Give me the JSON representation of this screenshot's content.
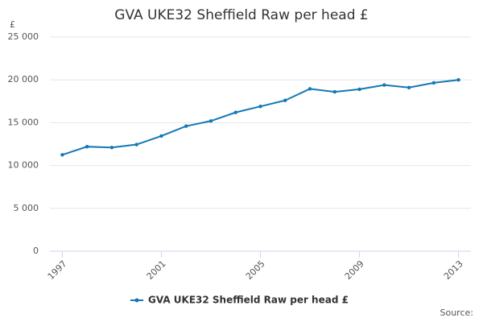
{
  "chart_data": {
    "type": "line",
    "title": "GVA UKE32 Sheffield Raw per head £",
    "y_label": "£",
    "source": "Source:",
    "x": [
      1997,
      1998,
      1999,
      2000,
      2001,
      2002,
      2003,
      2004,
      2005,
      2006,
      2007,
      2008,
      2009,
      2010,
      2011,
      2012,
      2013
    ],
    "series": [
      {
        "name": "GVA UKE32 Sheffield Raw per head £",
        "color": "#1478b4",
        "values": [
          11250,
          12200,
          12100,
          12450,
          13450,
          14600,
          15200,
          16200,
          16900,
          17600,
          18950,
          18600,
          18900,
          19400,
          19100,
          19650,
          20000
        ]
      }
    ],
    "xlim": [
      1996.5,
      2013.5
    ],
    "xticks": [
      1997,
      2001,
      2005,
      2009,
      2013
    ],
    "ylim": [
      0,
      25000
    ],
    "yticks": [
      0,
      {
        "value": 5000,
        "label": "5 000"
      },
      {
        "value": 10000,
        "label": "10 000"
      },
      {
        "value": 15000,
        "label": "15 000"
      },
      {
        "value": 20000,
        "label": "20 000"
      },
      {
        "value": 25000,
        "label": "25 000"
      }
    ],
    "grid": true
  }
}
